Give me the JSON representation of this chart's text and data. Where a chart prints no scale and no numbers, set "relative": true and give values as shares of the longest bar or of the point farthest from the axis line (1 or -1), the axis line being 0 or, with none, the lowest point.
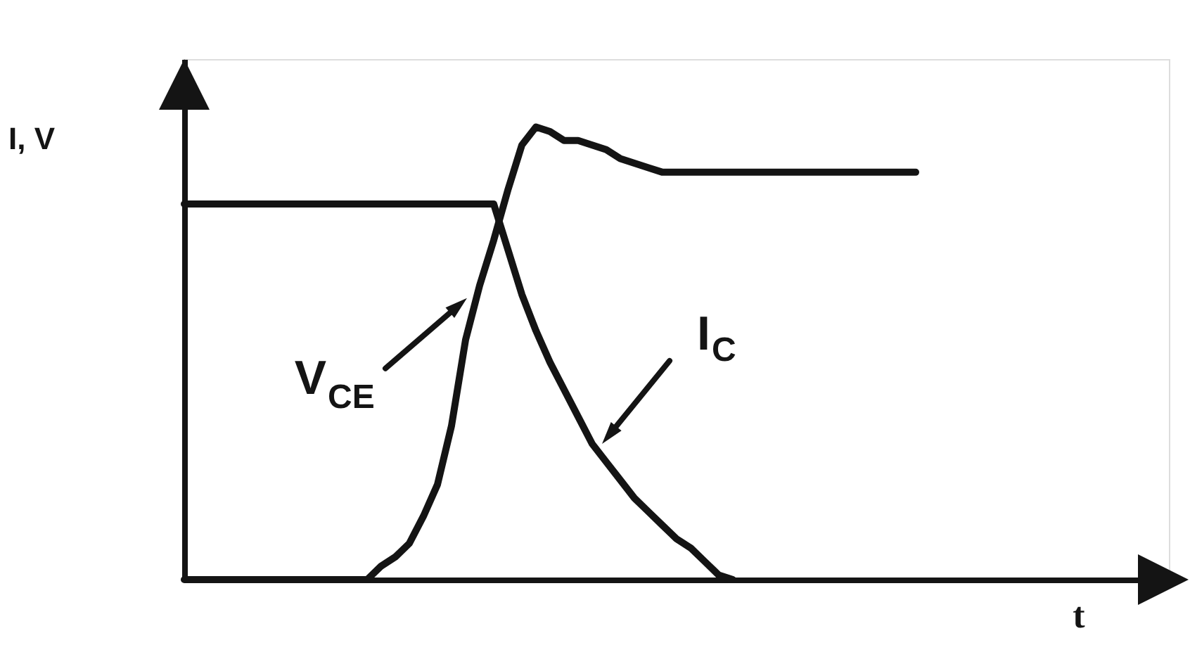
{
  "chart_data": {
    "type": "line",
    "xlabel": "t",
    "ylabel": "I, V",
    "relative": true,
    "categories": [
      null,
      null,
      null,
      null,
      null,
      null,
      null,
      null,
      null,
      null,
      null,
      null,
      null,
      null,
      null,
      null,
      null,
      null,
      null,
      null,
      null,
      null,
      null,
      null,
      null,
      null,
      null,
      null,
      null,
      null,
      null,
      null,
      null,
      null,
      null,
      null,
      null,
      null,
      null,
      null,
      null,
      null,
      null,
      null,
      null,
      null,
      null,
      null,
      null,
      null,
      null,
      null,
      null,
      null,
      null,
      null,
      null,
      null,
      null,
      null,
      null,
      null,
      null,
      null,
      null,
      null,
      null,
      null,
      null,
      null,
      null
    ],
    "series": [
      {
        "name": "V$_{CE}$",
        "color": "#141414",
        "values": [
          0,
          0,
          0,
          0,
          0,
          0,
          0,
          0,
          0,
          0,
          0,
          0,
          0,
          0,
          0.03,
          0.05,
          0.08,
          0.14,
          0.21,
          0.34,
          0.53,
          0.65,
          0.75,
          0.86,
          0.96,
          1.0,
          0.99,
          0.97,
          0.97,
          0.96,
          0.95,
          0.93,
          0.92,
          0.91,
          0.9,
          0.9,
          0.9,
          0.9,
          0.9,
          0.9,
          0.9,
          0.9,
          0.9,
          0.9,
          0.9,
          0.9,
          0.9,
          0.9,
          0.9,
          0.9,
          0.9,
          0.9,
          0.9,
          null,
          null,
          null,
          null,
          null,
          null,
          null,
          null,
          null,
          null,
          null,
          null,
          null,
          null,
          null,
          null,
          null,
          null
        ]
      },
      {
        "name": "I$_{C}$",
        "color": "#141414",
        "values": [
          0.83,
          0.83,
          0.83,
          0.83,
          0.83,
          0.83,
          0.83,
          0.83,
          0.83,
          0.83,
          0.83,
          0.83,
          0.83,
          0.83,
          0.83,
          0.83,
          0.83,
          0.83,
          0.83,
          0.83,
          0.83,
          0.83,
          0.83,
          0.73,
          0.63,
          0.55,
          0.48,
          0.42,
          0.36,
          0.3,
          0.26,
          0.22,
          0.18,
          0.15,
          0.12,
          0.09,
          0.07,
          0.04,
          0.01,
          0,
          null,
          null,
          null,
          null,
          null,
          null,
          null,
          null,
          null,
          null,
          null,
          null,
          null,
          null,
          null,
          null,
          null,
          null,
          null,
          null,
          null,
          null,
          null,
          null,
          null,
          null,
          null,
          null,
          null,
          null,
          null
        ]
      }
    ]
  }
}
